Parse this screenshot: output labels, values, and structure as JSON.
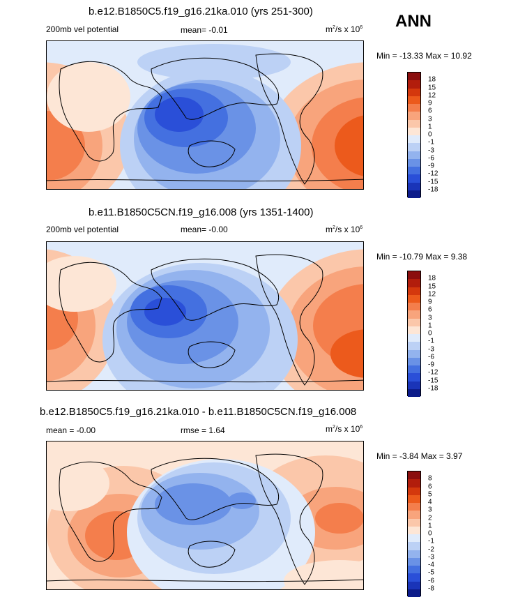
{
  "season": "ANN",
  "panels": [
    {
      "title": "b.e12.B1850C5.f19_g16.21ka.010 (yrs 251-300)",
      "left_label": "200mb vel potential",
      "mean_label": "mean=  -0.01",
      "rmse_label": "",
      "units_base": "m",
      "units_mid": "/s x 10",
      "units_sup1": "2",
      "units_sup2": "6",
      "minmax": "Min = -13.33 Max =  10.92",
      "colorbar_levels": [
        "18",
        "15",
        "12",
        "9",
        "6",
        "3",
        "1",
        "0",
        "-1",
        "-3",
        "-6",
        "-9",
        "-12",
        "-15",
        "-18"
      ]
    },
    {
      "title": "b.e11.B1850C5CN.f19_g16.008 (yrs 1351-1400)",
      "left_label": "200mb vel potential",
      "mean_label": "mean=  -0.00",
      "rmse_label": "",
      "units_base": "m",
      "units_mid": "/s x 10",
      "units_sup1": "2",
      "units_sup2": "6",
      "minmax": "Min = -10.79 Max =   9.38",
      "colorbar_levels": [
        "18",
        "15",
        "12",
        "9",
        "6",
        "3",
        "1",
        "0",
        "-1",
        "-3",
        "-6",
        "-9",
        "-12",
        "-15",
        "-18"
      ]
    },
    {
      "title": "b.e12.B1850C5.f19_g16.21ka.010 - b.e11.B1850C5CN.f19_g16.008",
      "left_label": "mean =  -0.00",
      "mean_label": "",
      "rmse_label": "rmse =   1.64",
      "units_base": "m",
      "units_mid": "/s x 10",
      "units_sup1": "2",
      "units_sup2": "6",
      "minmax": "Min =  -3.84 Max =   3.97",
      "colorbar_levels": [
        "8",
        "6",
        "5",
        "4",
        "3",
        "2",
        "1",
        "0",
        "-1",
        "-2",
        "-3",
        "-4",
        "-5",
        "-6",
        "-8"
      ]
    }
  ],
  "colors": {
    "palette": [
      "#8b0e0e",
      "#b21d0c",
      "#d4380d",
      "#ec5a1c",
      "#f47e4c",
      "#f8a47c",
      "#fbc7aa",
      "#fde6d6",
      "#e0ebfb",
      "#bcd1f5",
      "#93b3ee",
      "#6a92e6",
      "#4470e0",
      "#2a4fd8",
      "#1a34b8",
      "#0d1c8a"
    ],
    "ocean_light": "#e0ebfb"
  },
  "chart_data": [
    {
      "type": "heatmap",
      "title": "b.e12.B1850C5.f19_g16.21ka.010 (yrs 251-300)",
      "variable": "200mb vel potential",
      "units": "m2/s x 10^6",
      "mean": -0.01,
      "min": -13.33,
      "max": 10.92,
      "contour_levels": [
        -18,
        -15,
        -12,
        -9,
        -6,
        -3,
        -1,
        0,
        1,
        3,
        6,
        9,
        12,
        15,
        18
      ]
    },
    {
      "type": "heatmap",
      "title": "b.e11.B1850C5CN.f19_g16.008 (yrs 1351-1400)",
      "variable": "200mb vel potential",
      "units": "m2/s x 10^6",
      "mean": -0.0,
      "min": -10.79,
      "max": 9.38,
      "contour_levels": [
        -18,
        -15,
        -12,
        -9,
        -6,
        -3,
        -1,
        0,
        1,
        3,
        6,
        9,
        12,
        15,
        18
      ]
    },
    {
      "type": "heatmap",
      "title": "b.e12.B1850C5.f19_g16.21ka.010 - b.e11.B1850C5CN.f19_g16.008",
      "variable": "difference",
      "units": "m2/s x 10^6",
      "mean": -0.0,
      "rmse": 1.64,
      "min": -3.84,
      "max": 3.97,
      "contour_levels": [
        -8,
        -6,
        -5,
        -4,
        -3,
        -2,
        -1,
        0,
        1,
        2,
        3,
        4,
        5,
        6,
        8
      ]
    }
  ]
}
